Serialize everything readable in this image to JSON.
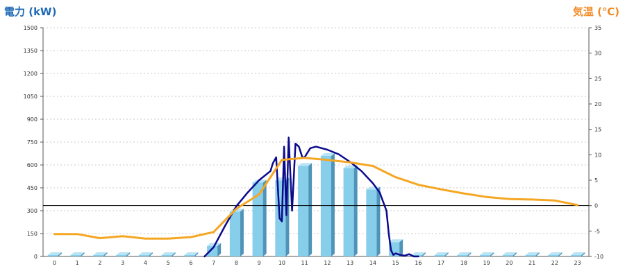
{
  "chart_data": {
    "type": "bar",
    "left_axis_title": "電力 (kW)",
    "right_axis_title": "気温 (℃)",
    "categories": [
      "0",
      "1",
      "2",
      "3",
      "4",
      "5",
      "6",
      "7",
      "8",
      "9",
      "10",
      "11",
      "12",
      "13",
      "14",
      "15",
      "16",
      "17",
      "18",
      "19",
      "20",
      "21",
      "22",
      "23"
    ],
    "y_left": {
      "min": 0,
      "max": 1500,
      "ticks": [
        "0",
        "150",
        "300",
        "450",
        "600",
        "750",
        "900",
        "1050",
        "1200",
        "1350",
        "1500"
      ]
    },
    "y_right": {
      "min": -10,
      "max": 35,
      "ticks": [
        "-10",
        "-5",
        "0",
        "5",
        "10",
        "15",
        "20",
        "25",
        "30",
        "35"
      ]
    },
    "grid": true,
    "series": [
      {
        "kind": "bar",
        "axis": "left",
        "color": "#87ceeb",
        "values": [
          0,
          0,
          0,
          0,
          0,
          0,
          0,
          60,
          285,
          475,
          490,
          585,
          650,
          570,
          430,
          85,
          0,
          0,
          0,
          0,
          0,
          0,
          0,
          0
        ]
      },
      {
        "kind": "line",
        "axis": "left",
        "color": "#0a0a8c",
        "x": [
          6.6,
          7.0,
          7.5,
          8.0,
          8.5,
          9.0,
          9.5,
          9.6,
          9.75,
          9.9,
          10.0,
          10.1,
          10.2,
          10.3,
          10.45,
          10.6,
          10.75,
          10.9,
          11.0,
          11.25,
          11.5,
          12.0,
          12.5,
          13.0,
          13.5,
          14.0,
          14.3,
          14.6,
          14.7,
          14.8,
          14.9,
          15.0,
          15.2,
          15.4,
          15.6,
          15.8,
          16.0
        ],
        "values": [
          0,
          60,
          200,
          330,
          420,
          500,
          560,
          610,
          650,
          250,
          230,
          720,
          270,
          780,
          300,
          740,
          720,
          650,
          650,
          710,
          720,
          700,
          670,
          620,
          560,
          480,
          420,
          300,
          150,
          40,
          10,
          20,
          10,
          5,
          15,
          0,
          0
        ]
      },
      {
        "kind": "line",
        "axis": "right",
        "color": "#f5a623",
        "x": [
          0,
          1,
          2,
          3,
          4,
          5,
          6,
          7,
          8,
          9,
          10,
          11,
          12,
          13,
          14,
          15,
          16,
          17,
          18,
          19,
          20,
          21,
          22,
          23
        ],
        "values": [
          -5.6,
          -5.6,
          -6.4,
          -6.0,
          -6.5,
          -6.5,
          -6.2,
          -5.2,
          -0.6,
          2.2,
          9.0,
          9.4,
          9.0,
          8.5,
          7.8,
          5.6,
          4.1,
          3.2,
          2.4,
          1.7,
          1.3,
          1.2,
          1.0,
          0.1
        ]
      }
    ],
    "reference_line": {
      "axis": "right",
      "value": 0,
      "color": "#000000"
    }
  }
}
